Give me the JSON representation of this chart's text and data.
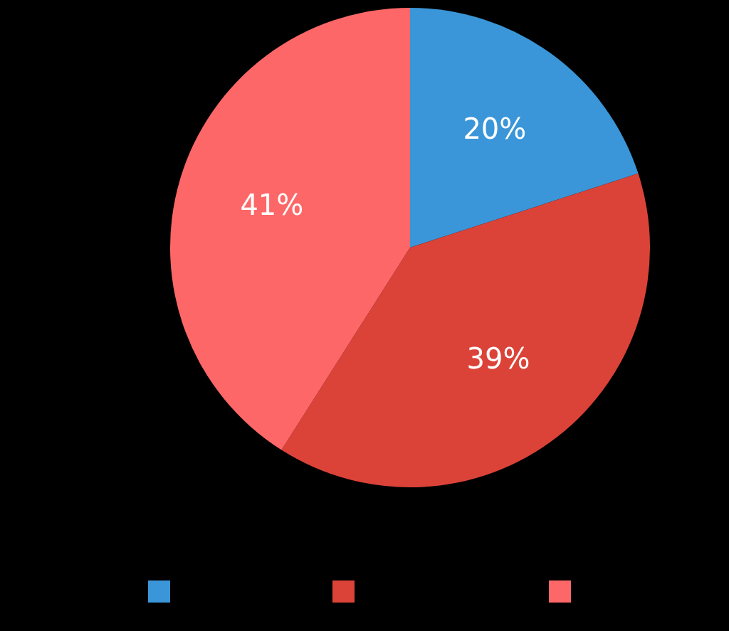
{
  "chart_data": {
    "type": "pie",
    "categories": [
      null,
      null,
      null
    ],
    "values": [
      20,
      39,
      41
    ],
    "colors": [
      "#3a96d8",
      "#dc4338",
      "#fe6767"
    ],
    "value_labels": [
      "20%",
      "39%",
      "41%"
    ]
  }
}
